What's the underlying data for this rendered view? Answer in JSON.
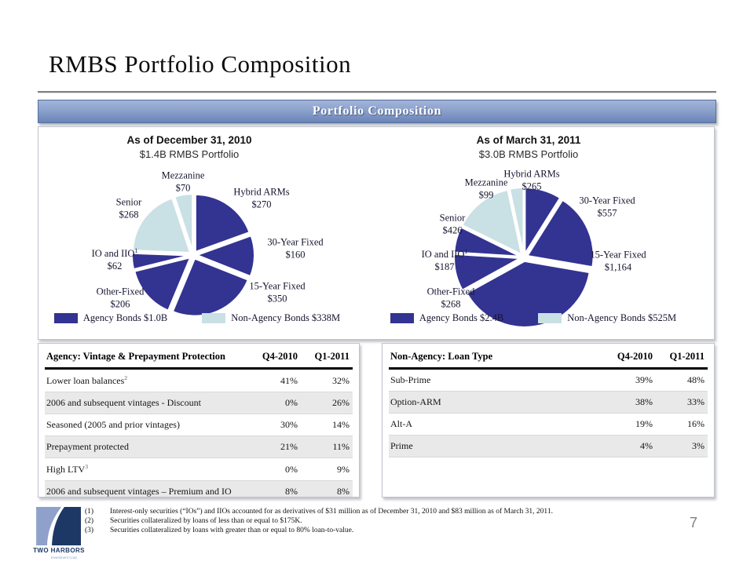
{
  "slide": {
    "title": "RMBS Portfolio Composition",
    "page_number": "7"
  },
  "banner": {
    "title": "Portfolio Composition"
  },
  "chart_data": [
    {
      "type": "pie",
      "title": "As of December 31, 2010",
      "subtitle": "$1.4B RMBS Portfolio",
      "units": "millions USD",
      "slices": [
        {
          "label": "Hybrid ARMs",
          "display": "$270",
          "value": 270,
          "group": "agency"
        },
        {
          "label": "30-Year Fixed",
          "display": "$160",
          "value": 160,
          "group": "agency"
        },
        {
          "label": "15-Year Fixed",
          "display": "$350",
          "value": 350,
          "group": "agency"
        },
        {
          "label": "Other-Fixed",
          "display": "$206",
          "value": 206,
          "group": "agency"
        },
        {
          "label": "IO and IIO",
          "sup": "1",
          "display": "$62",
          "value": 62,
          "group": "agency"
        },
        {
          "label": "Senior",
          "display": "$268",
          "value": 268,
          "group": "non_agency"
        },
        {
          "label": "Mezzanine",
          "display": "$70",
          "value": 70,
          "group": "non_agency"
        }
      ],
      "colors": {
        "agency": "#333392",
        "non_agency": "#c9e0e5"
      },
      "legend": [
        {
          "swatch": "agency",
          "label": "Agency Bonds $1.0B"
        },
        {
          "swatch": "non_agency",
          "label": "Non-Agency Bonds $338M"
        }
      ]
    },
    {
      "type": "pie",
      "title": "As of March 31, 2011",
      "subtitle": "$3.0B RMBS Portfolio",
      "units": "millions USD",
      "slices": [
        {
          "label": "Hybrid ARMs",
          "display": "$265",
          "value": 265,
          "group": "agency"
        },
        {
          "label": "30-Year Fixed",
          "display": "$557",
          "value": 557,
          "group": "agency"
        },
        {
          "label": "15-Year Fixed",
          "display": "$1,164",
          "value": 1164,
          "group": "agency"
        },
        {
          "label": "Other-Fixed",
          "display": "$268",
          "value": 268,
          "group": "agency"
        },
        {
          "label": "IO and IIO",
          "sup": "1",
          "display": "$187",
          "value": 187,
          "group": "agency"
        },
        {
          "label": "Senior",
          "display": "$426",
          "value": 426,
          "group": "non_agency"
        },
        {
          "label": "Mezzanine",
          "display": "$99",
          "value": 99,
          "group": "non_agency"
        }
      ],
      "colors": {
        "agency": "#333392",
        "non_agency": "#c9e0e5"
      },
      "legend": [
        {
          "swatch": "agency",
          "label": "Agency Bonds $2.4B"
        },
        {
          "swatch": "non_agency",
          "label": "Non-Agency Bonds $525M"
        }
      ]
    }
  ],
  "tables": [
    {
      "header": [
        "Agency: Vintage & Prepayment Protection",
        "Q4-2010",
        "Q1-2011"
      ],
      "rows": [
        {
          "label": "Lower loan balances",
          "sup": "2",
          "q4": "41%",
          "q1": "32%"
        },
        {
          "label": "2006 and subsequent vintages - Discount",
          "q4": "0%",
          "q1": "26%"
        },
        {
          "label": "Seasoned (2005 and prior vintages)",
          "q4": "30%",
          "q1": "14%"
        },
        {
          "label": "Prepayment protected",
          "q4": "21%",
          "q1": "11%"
        },
        {
          "label": "High LTV",
          "sup": "3",
          "q4": "0%",
          "q1": "9%"
        },
        {
          "label": "2006 and subsequent vintages – Premium and IO",
          "q4": "8%",
          "q1": "8%"
        }
      ]
    },
    {
      "header": [
        "Non-Agency: Loan Type",
        "Q4-2010",
        "Q1-2011"
      ],
      "rows": [
        {
          "label": "Sub-Prime",
          "q4": "39%",
          "q1": "48%"
        },
        {
          "label": "Option-ARM",
          "q4": "38%",
          "q1": "33%"
        },
        {
          "label": "Alt-A",
          "q4": "19%",
          "q1": "16%"
        },
        {
          "label": "Prime",
          "q4": "4%",
          "q1": "3%"
        }
      ]
    }
  ],
  "footnotes": [
    {
      "num": "(1)",
      "text": "Interest-only securities (“IOs”) and IIOs accounted for as derivatives of $31 million as of December 31, 2010 and $83 million as of March 31, 2011."
    },
    {
      "num": "(2)",
      "text": "Securities collateralized by loans of less than or equal to $175K."
    },
    {
      "num": "(3)",
      "text": "Securities collateralized by loans with greater than or equal to 80% loan-to-value."
    }
  ],
  "logo": {
    "name": "TWO HARBORS",
    "subname": "Investment Corp."
  }
}
